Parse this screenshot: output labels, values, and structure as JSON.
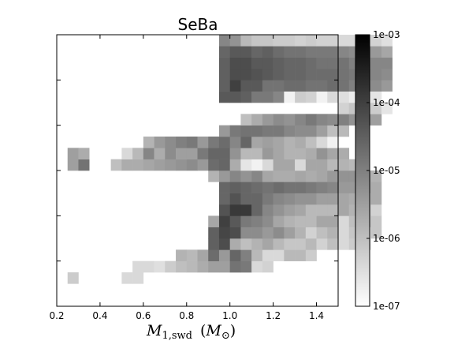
{
  "chart_data": {
    "type": "heatmap",
    "title": "SeBa",
    "xlabel_main": "M",
    "xlabel_sub": "1,swd",
    "xlabel_unit_main": "M",
    "xlabel_unit_sub": "⊙",
    "ylabel": "",
    "xlim": [
      0.2,
      1.5
    ],
    "ylim": [
      0,
      6
    ],
    "xticks": [
      0.2,
      0.4,
      0.6,
      0.8,
      1.0,
      1.2,
      1.4
    ],
    "xtick_labels": [
      "0.2",
      "0.4",
      "0.6",
      "0.8",
      "1.0",
      "1.2",
      "1.4"
    ],
    "yticks": [
      1,
      2,
      3,
      4,
      5
    ],
    "yticks_labeled": false,
    "grid": false,
    "colorscale": "log",
    "colormap": "gray_r",
    "colorbar_range": [
      1e-07,
      0.001
    ],
    "colorbar_ticks": [
      1e-07,
      1e-06,
      1e-05,
      0.0001,
      0.001
    ],
    "colorbar_tick_labels": [
      "1e-07",
      "1e-06",
      "1e-05",
      "1e-04",
      "1e-03"
    ],
    "bin_width_x": 0.05,
    "bin_height_y": 0.25,
    "bin_origin_x": 0.25,
    "bin_origin_y": 0.5,
    "grid_values_log10": [
      [
        "-6.2",
        "",
        "",
        "",
        "",
        "-6.4",
        "-6.4",
        "",
        "",
        "",
        "",
        "",
        "",
        "",
        "",
        "",
        "",
        "",
        "",
        "",
        "",
        "",
        ""
      ],
      [
        "",
        "",
        "",
        "",
        "",
        "",
        "-6.4",
        "-6.4",
        "-6.5",
        "-6.2",
        "-6.0",
        "-5.9",
        "-5.7",
        "-5.5",
        "-5.5",
        "-4.8",
        "-4.9",
        "-6.4",
        "-6.3",
        "",
        "",
        "",
        "",
        ""
      ],
      [
        "",
        "",
        "",
        "",
        "",
        "",
        "",
        "",
        "",
        "",
        "-5.8",
        "-5.9",
        "-5.6",
        "-4.7",
        "-5.4",
        "-4.6",
        "-5.0",
        "-5.9",
        "-6.4",
        "-6.4",
        "-5.9",
        "-5.9",
        "-6.2"
      ],
      [
        "",
        "",
        "",
        "",
        "",
        "",
        "",
        "",
        "",
        "",
        "",
        "",
        "",
        "-4.5",
        "-4.2",
        "-5.7",
        "-6.0",
        "-5.8",
        "-5.6",
        "-5.9",
        "-6.1",
        "-6.1",
        "-5.9",
        "-6.3",
        "-6.0",
        "-6.4",
        "-6.2",
        "-6.3"
      ],
      [
        "",
        "",
        "",
        "",
        "",
        "",
        "",
        "",
        "",
        "",
        "",
        "",
        "",
        "-4.5",
        "-4.1",
        "-4.2",
        "-5.2",
        "-5.2",
        "-5.4",
        "-5.2",
        "-5.5",
        "-5.8",
        "-6.3",
        "-6.0",
        "-5.8",
        "-6.4",
        "-6.1",
        "-6.6",
        "-6.1"
      ],
      [
        "",
        "",
        "",
        "",
        "",
        "",
        "",
        "",
        "",
        "",
        "",
        "",
        "",
        "-5.6",
        "-4.0",
        "-4.4",
        "-4.9",
        "-5.0",
        "-5.2",
        "-5.6",
        "-5.8",
        "-5.9",
        "-5.9",
        "-5.6",
        "-5.6",
        "-6.4",
        "-6.0",
        "-5.9",
        "-6.1"
      ],
      [
        "",
        "",
        "",
        "",
        "",
        "",
        "",
        "",
        "",
        "",
        "",
        "",
        "",
        "",
        "-4.3",
        "-3.9",
        "-3.9",
        "-4.6",
        "-5.1",
        "-5.3",
        "-5.5",
        "-5.6",
        "-5.9",
        "-5.9",
        "-5.9",
        "-5.6",
        "-5.8",
        "-5.8",
        "-6.3"
      ],
      [
        "",
        "",
        "",
        "",
        "",
        "",
        "",
        "",
        "",
        "",
        "",
        "",
        "",
        "",
        "-4.6",
        "-4.3",
        "-4.6",
        "-4.6",
        "-4.9",
        "-5.1",
        "-5.2",
        "-5.3",
        "-5.3",
        "-5.5",
        "-5.5",
        "-5.6",
        "-5.7",
        "-5.9",
        "-5.7"
      ],
      [
        "",
        "",
        "",
        "",
        "",
        "",
        "",
        "",
        "",
        "",
        "",
        "",
        "",
        "",
        "-4.6",
        "-4.5",
        "-4.6",
        "-4.7",
        "-4.8",
        "-4.7",
        "-4.8",
        "-4.8",
        "-4.9",
        "-5.0",
        "-5.1",
        "-5.4",
        "-5.4",
        "-5.5",
        "-5.7"
      ],
      [
        "",
        "",
        "",
        "",
        "",
        "",
        "",
        "",
        "",
        "",
        "",
        "",
        "",
        "-5.8",
        "-5.4",
        "-5.1",
        "-5.3",
        "-5.1",
        "-5.6",
        "-5.7",
        "-5.7",
        "-5.6",
        "-5.7",
        "-5.6",
        "-5.4",
        "-5.3",
        "-5.3",
        "-5.4",
        "-5.8"
      ],
      [
        "-5.5",
        "-4.8",
        "",
        "",
        "-6.0",
        "-5.7",
        "-5.7",
        "-5.6",
        "-5.5",
        "-5.4",
        "-5.3",
        "-5.2",
        "-5.4",
        "-4.7",
        "-4.6",
        "-5.7",
        "-6.6",
        "-6.8",
        "-6.4",
        "-5.6",
        "-5.6",
        "-6.4",
        "-5.6",
        "-5.6",
        "-5.9",
        "-5.8",
        "-5.9"
      ],
      [
        "-5.5",
        "-5.7",
        "",
        "",
        "",
        "-6.4",
        "-5.9",
        "-5.1",
        "-5.7",
        "-5.2",
        "-5.5",
        "-5.5",
        "-4.9",
        "-4.6",
        "-4.6",
        "-5.3",
        "-5.9",
        "-5.9",
        "-5.4",
        "-5.6",
        "-5.8",
        "-5.8",
        "-5.7",
        "-5.3",
        "-5.6",
        "-5.7"
      ],
      [
        "",
        "",
        "",
        "",
        "",
        "",
        "",
        "-5.8",
        "-5.4",
        "-5.2",
        "-5.0",
        "-4.9",
        "-5.4",
        "-4.9",
        "-4.7",
        "-5.1",
        "-4.6",
        "-5.6",
        "-5.5",
        "-5.6",
        "-5.8",
        "-5.7",
        "-6.0",
        "-6.4",
        "-6.8"
      ],
      [
        "",
        "",
        "",
        "",
        "",
        "",
        "",
        "",
        "",
        "",
        "",
        "",
        "",
        "",
        "-5.4",
        "-4.9",
        "-4.8",
        "-4.8",
        "-4.9",
        "-4.9",
        "-5.1",
        "-5.2",
        "-5.2",
        "-5.5",
        "-6.0",
        "-5.9"
      ],
      [
        "",
        "",
        "",
        "",
        "",
        "",
        "",
        "",
        "",
        "",
        "",
        "",
        "",
        "",
        "",
        "",
        "-6.0",
        "-5.7",
        "-5.4",
        "-5.2",
        "-5.3",
        "-5.1",
        "-4.9",
        "-5.1",
        "-5.2",
        "-5.0",
        "-5.3",
        "-5.3",
        "-5.5"
      ],
      [
        "",
        "",
        "",
        "",
        "",
        "",
        "",
        "",
        "",
        "",
        "",
        "",
        "",
        "",
        "",
        "",
        "",
        "",
        "",
        "",
        "",
        "",
        "",
        "",
        "",
        "-6.3",
        "-6.1",
        "-6.2",
        "-6.2",
        "-6.6"
      ],
      [
        "",
        "",
        "",
        "",
        "",
        "",
        "",
        "",
        "",
        "",
        "",
        "",
        "",
        "",
        "-4.4",
        "-4.4",
        "-4.5",
        "-4.9",
        "-4.9",
        "-5.1",
        "-6.8",
        "-6.2",
        "-6.3",
        "-6.8",
        "-6.4",
        "-6.5",
        "-6.7",
        "-6.8",
        "-6.6"
      ],
      [
        "",
        "",
        "",
        "",
        "",
        "",
        "",
        "",
        "",
        "",
        "",
        "",
        "",
        "",
        "-4.5",
        "-4.0",
        "-4.4",
        "-4.4",
        "-4.8",
        "-4.8",
        "-4.7",
        "-4.7",
        "-4.8",
        "-4.8",
        "-4.7",
        "-4.8",
        "-5.0",
        "-5.0",
        "-5.2",
        "-5.4"
      ],
      [
        "",
        "",
        "",
        "",
        "",
        "",
        "",
        "",
        "",
        "",
        "",
        "",
        "",
        "",
        "-4.5",
        "-4.2",
        "-4.2",
        "-4.3",
        "-4.4",
        "-4.5",
        "-4.6",
        "-4.6",
        "-4.7",
        "-4.7",
        "-4.7",
        "-4.8",
        "-4.9",
        "-4.9",
        "-5.1",
        "-5.2"
      ],
      [
        "",
        "",
        "",
        "",
        "",
        "",
        "",
        "",
        "",
        "",
        "",
        "",
        "",
        "",
        "-4.5",
        "-4.2",
        "-4.2",
        "-4.4",
        "-4.4",
        "-4.5",
        "-4.6",
        "-4.6",
        "-4.7",
        "-4.8",
        "-4.8",
        "-4.8",
        "-5.0",
        "-5.0",
        "-5.1",
        "-5.1"
      ],
      [
        "",
        "",
        "",
        "",
        "",
        "",
        "",
        "",
        "",
        "",
        "",
        "",
        "",
        "",
        "-4.6",
        "-4.4",
        "-4.4",
        "-4.6",
        "-4.5",
        "-4.7",
        "-4.8",
        "-4.8",
        "-4.9",
        "-4.9",
        "-4.9",
        "-5.1",
        "-5.2",
        "-5.2",
        "-5.4",
        "-5.6"
      ],
      [
        "",
        "",
        "",
        "",
        "",
        "",
        "",
        "",
        "",
        "",
        "",
        "",
        "",
        "",
        "-5.1",
        "-5.3",
        "-5.9",
        "-6.1",
        "-6.1",
        "-6.2",
        "-6.2",
        "-6.3",
        "-6.2",
        "-6.3",
        "-6.3",
        "-6.4",
        "-6.4",
        "-6.3",
        "-6.3",
        "-6.5"
      ]
    ],
    "grid_row_y_centers": [
      0.625,
      0.875,
      1.125,
      1.375,
      1.625,
      1.875,
      2.125,
      2.375,
      2.625,
      2.875,
      3.125,
      3.375,
      3.625,
      3.875,
      4.125,
      4.375,
      4.625,
      4.875,
      5.125,
      5.375,
      5.625,
      5.875
    ],
    "grid_col_x_start": 0.25
  }
}
